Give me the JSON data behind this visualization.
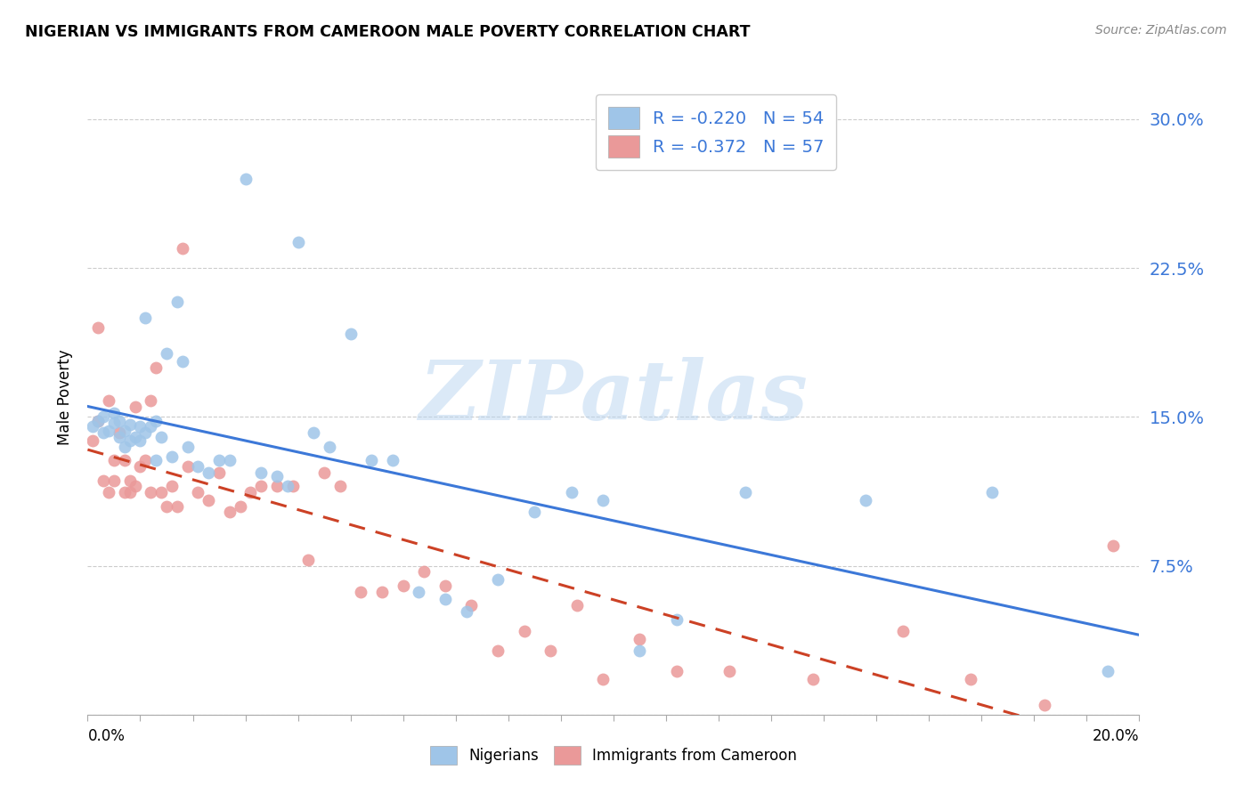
{
  "title": "NIGERIAN VS IMMIGRANTS FROM CAMEROON MALE POVERTY CORRELATION CHART",
  "source": "Source: ZipAtlas.com",
  "ylabel": "Male Poverty",
  "xlim": [
    0.0,
    0.2
  ],
  "ylim": [
    0.0,
    0.32
  ],
  "r_nigerian": -0.22,
  "n_nigerian": 54,
  "r_cameroon": -0.372,
  "n_cameroon": 57,
  "color_nigerian": "#9fc5e8",
  "color_cameroon": "#ea9999",
  "trendline_nigerian": "#3c78d8",
  "trendline_cameroon": "#cc4125",
  "ytick_color": "#3c78d8",
  "watermark_color": "#b8d4f0",
  "grid_color": "#cccccc",
  "nigerian_x": [
    0.001,
    0.002,
    0.003,
    0.003,
    0.004,
    0.005,
    0.005,
    0.006,
    0.006,
    0.007,
    0.007,
    0.008,
    0.008,
    0.009,
    0.01,
    0.01,
    0.011,
    0.011,
    0.012,
    0.013,
    0.013,
    0.014,
    0.015,
    0.016,
    0.017,
    0.018,
    0.019,
    0.021,
    0.023,
    0.025,
    0.027,
    0.03,
    0.033,
    0.036,
    0.038,
    0.04,
    0.043,
    0.046,
    0.05,
    0.054,
    0.058,
    0.063,
    0.068,
    0.072,
    0.078,
    0.085,
    0.092,
    0.098,
    0.105,
    0.112,
    0.125,
    0.148,
    0.172,
    0.194
  ],
  "nigerian_y": [
    0.145,
    0.148,
    0.142,
    0.15,
    0.143,
    0.147,
    0.152,
    0.14,
    0.148,
    0.135,
    0.143,
    0.146,
    0.138,
    0.14,
    0.145,
    0.138,
    0.142,
    0.2,
    0.145,
    0.148,
    0.128,
    0.14,
    0.182,
    0.13,
    0.208,
    0.178,
    0.135,
    0.125,
    0.122,
    0.128,
    0.128,
    0.27,
    0.122,
    0.12,
    0.115,
    0.238,
    0.142,
    0.135,
    0.192,
    0.128,
    0.128,
    0.062,
    0.058,
    0.052,
    0.068,
    0.102,
    0.112,
    0.108,
    0.032,
    0.048,
    0.112,
    0.108,
    0.112,
    0.022
  ],
  "cameroon_x": [
    0.001,
    0.002,
    0.002,
    0.003,
    0.004,
    0.004,
    0.005,
    0.005,
    0.006,
    0.007,
    0.007,
    0.008,
    0.008,
    0.009,
    0.009,
    0.01,
    0.011,
    0.012,
    0.012,
    0.013,
    0.014,
    0.015,
    0.016,
    0.017,
    0.018,
    0.019,
    0.021,
    0.023,
    0.025,
    0.027,
    0.029,
    0.031,
    0.033,
    0.036,
    0.039,
    0.042,
    0.045,
    0.048,
    0.052,
    0.056,
    0.06,
    0.064,
    0.068,
    0.073,
    0.078,
    0.083,
    0.088,
    0.093,
    0.098,
    0.105,
    0.112,
    0.122,
    0.138,
    0.155,
    0.168,
    0.182,
    0.195
  ],
  "cameroon_y": [
    0.138,
    0.195,
    0.148,
    0.118,
    0.158,
    0.112,
    0.128,
    0.118,
    0.142,
    0.128,
    0.112,
    0.118,
    0.112,
    0.115,
    0.155,
    0.125,
    0.128,
    0.112,
    0.158,
    0.175,
    0.112,
    0.105,
    0.115,
    0.105,
    0.235,
    0.125,
    0.112,
    0.108,
    0.122,
    0.102,
    0.105,
    0.112,
    0.115,
    0.115,
    0.115,
    0.078,
    0.122,
    0.115,
    0.062,
    0.062,
    0.065,
    0.072,
    0.065,
    0.055,
    0.032,
    0.042,
    0.032,
    0.055,
    0.018,
    0.038,
    0.022,
    0.022,
    0.018,
    0.042,
    0.018,
    0.005,
    0.085
  ]
}
